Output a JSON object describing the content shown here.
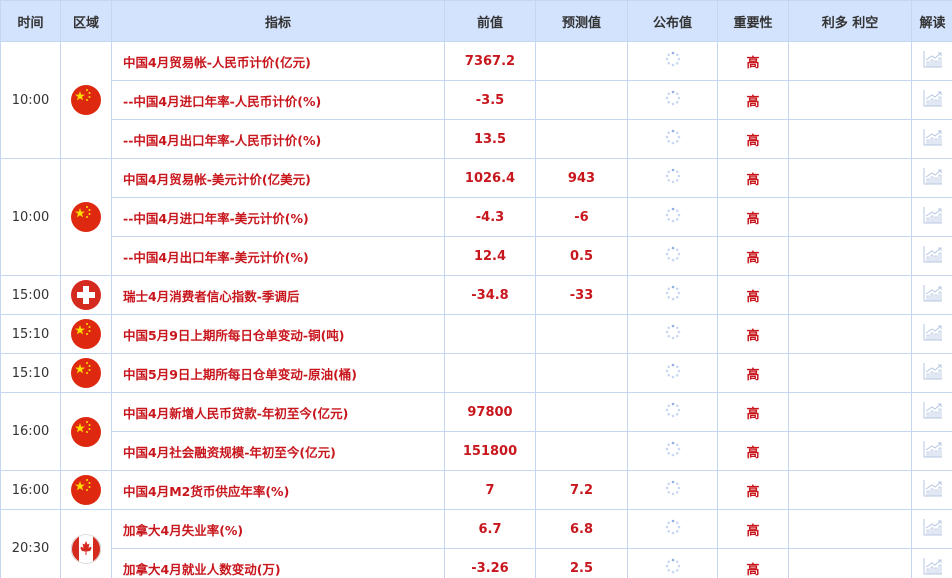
{
  "headers": {
    "time": "时间",
    "region": "区域",
    "indicator": "指标",
    "previous": "前值",
    "forecast": "预测值",
    "actual": "公布值",
    "importance": "重要性",
    "impact": "利多 利空",
    "analysis": "解读"
  },
  "colors": {
    "header_bg": "#d3e3fd",
    "border": "#c5d6f1",
    "text_red": "#c8161d"
  },
  "groups": [
    {
      "time": "10:00",
      "flag": "china",
      "rows": [
        {
          "indicator": "中国4月贸易帐-人民币计价(亿元)",
          "previous": "7367.2",
          "forecast": "",
          "importance": "高"
        },
        {
          "indicator": "--中国4月进口年率-人民币计价(%)",
          "previous": "-3.5",
          "forecast": "",
          "importance": "高"
        },
        {
          "indicator": "--中国4月出口年率-人民币计价(%)",
          "previous": "13.5",
          "forecast": "",
          "importance": "高"
        }
      ]
    },
    {
      "time": "10:00",
      "flag": "china",
      "rows": [
        {
          "indicator": "中国4月贸易帐-美元计价(亿美元)",
          "previous": "1026.4",
          "forecast": "943",
          "importance": "高"
        },
        {
          "indicator": "--中国4月进口年率-美元计价(%)",
          "previous": "-4.3",
          "forecast": "-6",
          "importance": "高"
        },
        {
          "indicator": "--中国4月出口年率-美元计价(%)",
          "previous": "12.4",
          "forecast": "0.5",
          "importance": "高"
        }
      ]
    },
    {
      "time": "15:00",
      "flag": "switzerland",
      "rows": [
        {
          "indicator": "瑞士4月消费者信心指数-季调后",
          "previous": "-34.8",
          "forecast": "-33",
          "importance": "高"
        }
      ]
    },
    {
      "time": "15:10",
      "flag": "china",
      "rows": [
        {
          "indicator": "中国5月9日上期所每日仓单变动-铜(吨)",
          "previous": "",
          "forecast": "",
          "importance": "高"
        }
      ]
    },
    {
      "time": "15:10",
      "flag": "china",
      "rows": [
        {
          "indicator": "中国5月9日上期所每日仓单变动-原油(桶)",
          "previous": "",
          "forecast": "",
          "importance": "高"
        }
      ]
    },
    {
      "time": "16:00",
      "flag": "china",
      "rows": [
        {
          "indicator": "中国4月新增人民币贷款-年初至今(亿元)",
          "previous": "97800",
          "forecast": "",
          "importance": "高"
        },
        {
          "indicator": "中国4月社会融资规模-年初至今(亿元)",
          "previous": "151800",
          "forecast": "",
          "importance": "高"
        }
      ]
    },
    {
      "time": "16:00",
      "flag": "china",
      "rows": [
        {
          "indicator": "中国4月M2货币供应年率(%)",
          "previous": "7",
          "forecast": "7.2",
          "importance": "高"
        }
      ]
    },
    {
      "time": "20:30",
      "flag": "canada",
      "rows": [
        {
          "indicator": "加拿大4月失业率(%)",
          "previous": "6.7",
          "forecast": "6.8",
          "importance": "高"
        },
        {
          "indicator": "加拿大4月就业人数变动(万)",
          "previous": "-3.26",
          "forecast": "2.5",
          "importance": "高"
        }
      ]
    }
  ]
}
